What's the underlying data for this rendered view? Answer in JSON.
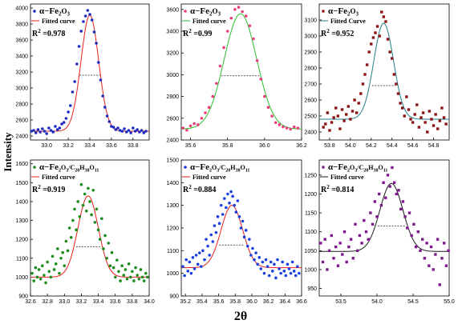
{
  "figure": {
    "ylabel": "Intensity",
    "xlabel": "2θ",
    "fit_label": "Fitted curve",
    "fit_label_alt": "Fitted Curve"
  },
  "chart_data": [
    {
      "type": "scatter",
      "legend_series": "α−Fe2O3",
      "fit_name": "Fitted curve",
      "r2": "R2 =0.978",
      "xlim": [
        32.85,
        33.95
      ],
      "ylim": [
        2350,
        4050
      ],
      "xticks": [
        "33.0",
        "33.2",
        "33.4",
        "33.6",
        "33.8"
      ],
      "xtick_values": [
        33.0,
        33.2,
        33.4,
        33.6,
        33.8
      ],
      "yticks": [
        "2400",
        "2600",
        "2800",
        "3000",
        "3200",
        "3400",
        "3600",
        "3800",
        "4000"
      ],
      "ytick_values": [
        2400,
        2600,
        2800,
        3000,
        3200,
        3400,
        3600,
        3800,
        4000
      ],
      "fit": {
        "center": 33.4,
        "sigma": 0.082,
        "amplitude": 1450,
        "baseline": 2460
      },
      "fwhm_level": 3160,
      "marker": "circle",
      "point_color": "#1d2bbf",
      "fit_color": "#e3201b",
      "x": [
        32.86,
        32.88,
        32.9,
        32.92,
        32.94,
        32.96,
        32.98,
        33.0,
        33.02,
        33.04,
        33.06,
        33.08,
        33.1,
        33.12,
        33.14,
        33.16,
        33.18,
        33.2,
        33.22,
        33.24,
        33.26,
        33.28,
        33.3,
        33.32,
        33.34,
        33.36,
        33.38,
        33.4,
        33.42,
        33.44,
        33.46,
        33.48,
        33.5,
        33.52,
        33.54,
        33.56,
        33.58,
        33.6,
        33.62,
        33.64,
        33.66,
        33.68,
        33.7,
        33.72,
        33.74,
        33.76,
        33.78,
        33.8,
        33.82,
        33.84,
        33.86,
        33.88,
        33.9,
        33.92
      ],
      "y": [
        2460,
        2470,
        2440,
        2480,
        2450,
        2490,
        2460,
        2430,
        2500,
        2470,
        2450,
        2520,
        2480,
        2500,
        2550,
        2570,
        2620,
        2700,
        2780,
        2950,
        3080,
        3300,
        3520,
        3710,
        3830,
        3900,
        3970,
        3920,
        3850,
        3700,
        3560,
        3320,
        3100,
        2900,
        2760,
        2650,
        2580,
        2520,
        2510,
        2480,
        2500,
        2470,
        2460,
        2490,
        2450,
        2470,
        2440,
        2500,
        2460,
        2480,
        2450,
        2470,
        2440,
        2460
      ]
    },
    {
      "type": "scatter",
      "legend_series": "α−Fe2O3",
      "fit_name": "Fitted curve",
      "r2": "R2 =0.99",
      "xlim": [
        35.55,
        36.2
      ],
      "ylim": [
        2400,
        3650
      ],
      "xticks": [
        "35.6",
        "35.8",
        "36.0",
        "36.2"
      ],
      "xtick_values": [
        35.6,
        35.8,
        36.0,
        36.2
      ],
      "yticks": [
        "2400",
        "2600",
        "2800",
        "3000",
        "3200",
        "3400",
        "3600"
      ],
      "ytick_values": [
        2400,
        2600,
        2800,
        3000,
        3200,
        3400,
        3600
      ],
      "fit": {
        "center": 35.87,
        "sigma": 0.088,
        "amplitude": 1060,
        "baseline": 2500
      },
      "fwhm_level": 2990,
      "marker": "circle",
      "point_color": "#e8407a",
      "fit_color": "#2bc02b",
      "x": [
        35.56,
        35.58,
        35.6,
        35.62,
        35.64,
        35.66,
        35.68,
        35.7,
        35.72,
        35.74,
        35.76,
        35.78,
        35.8,
        35.82,
        35.84,
        35.86,
        35.88,
        35.9,
        35.92,
        35.94,
        35.96,
        35.98,
        36.0,
        36.02,
        36.04,
        36.06,
        36.08,
        36.1,
        36.12,
        36.14,
        36.16,
        36.18
      ],
      "y": [
        2510,
        2490,
        2530,
        2550,
        2540,
        2600,
        2650,
        2700,
        2800,
        2920,
        3080,
        3250,
        3400,
        3520,
        3600,
        3620,
        3580,
        3540,
        3450,
        3330,
        3130,
        2960,
        2800,
        2700,
        2620,
        2560,
        2540,
        2520,
        2510,
        2500,
        2520,
        2510
      ]
    },
    {
      "type": "scatter",
      "legend_series": "α−Fe2O3",
      "fit_name": "Fitted Curve",
      "r2": "R2 =0.952",
      "xlim": [
        53.7,
        54.95
      ],
      "ylim": [
        2350,
        3200
      ],
      "xticks": [
        "53.8",
        "54.0",
        "54.2",
        "54.4",
        "54.6",
        "54.8"
      ],
      "xtick_values": [
        53.8,
        54.0,
        54.2,
        54.4,
        54.6,
        54.8
      ],
      "yticks": [
        "2400",
        "2500",
        "2600",
        "2700",
        "2800",
        "2900",
        "3000",
        "3100"
      ],
      "ytick_values": [
        2400,
        2500,
        2600,
        2700,
        2800,
        2900,
        3000,
        3100
      ],
      "fit": {
        "center": 54.32,
        "sigma": 0.095,
        "amplitude": 600,
        "baseline": 2480
      },
      "fwhm_level": 2690,
      "marker": "square",
      "point_color": "#8b1414",
      "fit_color": "#1f7f86",
      "x": [
        53.74,
        53.76,
        53.78,
        53.8,
        53.82,
        53.84,
        53.86,
        53.88,
        53.9,
        53.92,
        53.94,
        53.96,
        53.98,
        54.0,
        54.02,
        54.04,
        54.06,
        54.08,
        54.1,
        54.12,
        54.14,
        54.16,
        54.18,
        54.2,
        54.22,
        54.24,
        54.26,
        54.28,
        54.3,
        54.32,
        54.34,
        54.36,
        54.38,
        54.4,
        54.42,
        54.44,
        54.46,
        54.48,
        54.5,
        54.52,
        54.54,
        54.56,
        54.58,
        54.6,
        54.62,
        54.64,
        54.66,
        54.68,
        54.7,
        54.72,
        54.74,
        54.76,
        54.78,
        54.8,
        54.82,
        54.84,
        54.86,
        54.88,
        54.9,
        54.92
      ],
      "y": [
        2430,
        2450,
        2520,
        2410,
        2460,
        2490,
        2550,
        2500,
        2420,
        2540,
        2470,
        2510,
        2560,
        2480,
        2530,
        2600,
        2520,
        2580,
        2640,
        2700,
        2760,
        2820,
        2900,
        2950,
        2990,
        3020,
        3060,
        3000,
        3150,
        3120,
        3090,
        2980,
        2900,
        2860,
        2760,
        2700,
        2640,
        2580,
        2550,
        2500,
        2620,
        2540,
        2480,
        2460,
        2510,
        2570,
        2430,
        2490,
        2520,
        2460,
        2400,
        2530,
        2480,
        2440,
        2510,
        2420,
        2470,
        2550,
        2490,
        2450
      ]
    },
    {
      "type": "scatter",
      "legend_series": "α−Fe2O3/C20H38O11",
      "fit_name": "Fitted curve",
      "r2": "R2 =0.919",
      "xlim": [
        32.6,
        34.0
      ],
      "ylim": [
        900,
        1620
      ],
      "xticks": [
        "32.6",
        "32.8",
        "33.0",
        "33.2",
        "33.4",
        "33.6",
        "33.8",
        "34.0"
      ],
      "xtick_values": [
        32.6,
        32.8,
        33.0,
        33.2,
        33.4,
        33.6,
        33.8,
        34.0
      ],
      "yticks": [
        "900",
        "1000",
        "1100",
        "1200",
        "1300",
        "1400",
        "1500",
        "1600"
      ],
      "ytick_values": [
        900,
        1000,
        1100,
        1200,
        1300,
        1400,
        1500,
        1600
      ],
      "fit": {
        "center": 33.28,
        "sigma": 0.12,
        "amplitude": 430,
        "baseline": 1000
      },
      "fwhm_level": 1160,
      "marker": "circle",
      "point_color": "#1c8c1c",
      "fit_color": "#e3201b",
      "x": [
        32.62,
        32.64,
        32.66,
        32.68,
        32.7,
        32.72,
        32.74,
        32.76,
        32.78,
        32.8,
        32.82,
        32.84,
        32.86,
        32.88,
        32.9,
        32.92,
        32.94,
        32.96,
        32.98,
        33.0,
        33.02,
        33.04,
        33.06,
        33.08,
        33.1,
        33.12,
        33.14,
        33.16,
        33.18,
        33.2,
        33.22,
        33.24,
        33.26,
        33.28,
        33.3,
        33.32,
        33.34,
        33.36,
        33.38,
        33.4,
        33.42,
        33.44,
        33.46,
        33.48,
        33.5,
        33.52,
        33.54,
        33.56,
        33.58,
        33.6,
        33.62,
        33.64,
        33.66,
        33.68,
        33.7,
        33.72,
        33.74,
        33.76,
        33.78,
        33.8,
        33.82,
        33.84,
        33.86,
        33.88,
        33.9,
        33.92,
        33.94,
        33.96,
        33.98
      ],
      "y": [
        1020,
        980,
        1050,
        1000,
        1040,
        990,
        1060,
        1010,
        970,
        1080,
        1030,
        1000,
        1110,
        1040,
        1070,
        1150,
        1020,
        1100,
        1130,
        1060,
        1190,
        1140,
        1260,
        1210,
        1300,
        1360,
        1250,
        1400,
        1320,
        1490,
        1380,
        1440,
        1350,
        1470,
        1400,
        1330,
        1460,
        1290,
        1360,
        1250,
        1200,
        1310,
        1150,
        1220,
        1100,
        1180,
        1060,
        1130,
        1050,
        1000,
        1090,
        1030,
        980,
        1060,
        1010,
        1040,
        990,
        1070,
        1000,
        1030,
        980,
        1050,
        1010,
        990,
        1040,
        1000,
        980,
        1020,
        1000
      ]
    },
    {
      "type": "scatter",
      "legend_series": "α−Fe2O3/C20H38O11",
      "fit_name": "Fitted curve",
      "r2": "R2 =0.884",
      "xlim": [
        35.15,
        36.6
      ],
      "ylim": [
        900,
        1500
      ],
      "xticks": [
        "35.2",
        "35.4",
        "35.6",
        "35.8",
        "36.0",
        "36.2",
        "36.4",
        "36.6"
      ],
      "xtick_values": [
        35.2,
        35.4,
        35.6,
        35.8,
        36.0,
        36.2,
        36.4,
        36.6
      ],
      "yticks": [
        "900",
        "1000",
        "1100",
        "1200",
        "1300",
        "1400",
        "1500"
      ],
      "ytick_values": [
        900,
        1000,
        1100,
        1200,
        1300,
        1400,
        1500
      ],
      "fit": {
        "center": 35.76,
        "sigma": 0.13,
        "amplitude": 275,
        "baseline": 1025
      },
      "fwhm_level": 1125,
      "marker": "circle",
      "point_color": "#1a3fe0",
      "fit_color": "#e3201b",
      "x": [
        35.17,
        35.19,
        35.21,
        35.23,
        35.25,
        35.27,
        35.29,
        35.31,
        35.33,
        35.35,
        35.37,
        35.39,
        35.41,
        35.43,
        35.45,
        35.47,
        35.49,
        35.51,
        35.53,
        35.55,
        35.57,
        35.59,
        35.61,
        35.63,
        35.65,
        35.67,
        35.69,
        35.71,
        35.73,
        35.75,
        35.77,
        35.79,
        35.81,
        35.83,
        35.85,
        35.87,
        35.89,
        35.91,
        35.93,
        35.95,
        35.97,
        35.99,
        36.01,
        36.03,
        36.05,
        36.07,
        36.09,
        36.11,
        36.13,
        36.15,
        36.17,
        36.19,
        36.21,
        36.23,
        36.25,
        36.27,
        36.29,
        36.31,
        36.33,
        36.35,
        36.37,
        36.39,
        36.41,
        36.43,
        36.45,
        36.47,
        36.49,
        36.51,
        36.53,
        36.55,
        36.57
      ],
      "y": [
        1030,
        990,
        1060,
        1010,
        1050,
        1000,
        1070,
        1020,
        1080,
        1040,
        1090,
        1030,
        1100,
        1060,
        1150,
        1120,
        1080,
        1170,
        1140,
        1210,
        1180,
        1250,
        1220,
        1300,
        1260,
        1330,
        1290,
        1350,
        1310,
        1360,
        1340,
        1300,
        1270,
        1320,
        1250,
        1200,
        1230,
        1160,
        1190,
        1120,
        1150,
        1080,
        1110,
        1060,
        1090,
        1040,
        1070,
        1020,
        1050,
        1000,
        1060,
        1030,
        990,
        1050,
        1010,
        1040,
        980,
        1060,
        1020,
        1000,
        1050,
        1010,
        990,
        1040,
        1020,
        1000,
        1050,
        1010,
        990,
        1030,
        1000
      ]
    },
    {
      "type": "scatter",
      "legend_series": "α−Fe2O3/C20H38O11",
      "fit_name": "Fitted curve",
      "r2": "R2 =0.814",
      "xlim": [
        53.2,
        55.0
      ],
      "ylim": [
        930,
        1290
      ],
      "xticks": [
        "53.5",
        "54.0",
        "54.5",
        "55.0"
      ],
      "xtick_values": [
        53.5,
        54.0,
        54.5,
        55.0
      ],
      "yticks": [
        "950",
        "1000",
        "1050",
        "1100",
        "1150",
        "1200",
        "1250"
      ],
      "ytick_values": [
        950,
        1000,
        1050,
        1100,
        1150,
        1200,
        1250
      ],
      "fit": {
        "center": 54.2,
        "sigma": 0.16,
        "amplitude": 180,
        "baseline": 1048
      },
      "fwhm_level": 1115,
      "marker": "square",
      "point_color": "#7d1a8c",
      "fit_color": "#1a1a1a",
      "x": [
        53.22,
        53.25,
        53.28,
        53.31,
        53.34,
        53.37,
        53.4,
        53.43,
        53.46,
        53.49,
        53.52,
        53.55,
        53.58,
        53.61,
        53.64,
        53.67,
        53.7,
        53.73,
        53.76,
        53.79,
        53.82,
        53.85,
        53.88,
        53.91,
        53.94,
        53.97,
        54.0,
        54.03,
        54.06,
        54.09,
        54.12,
        54.15,
        54.18,
        54.21,
        54.24,
        54.27,
        54.3,
        54.33,
        54.36,
        54.39,
        54.42,
        54.45,
        54.48,
        54.51,
        54.54,
        54.57,
        54.6,
        54.63,
        54.66,
        54.69,
        54.72,
        54.75,
        54.78,
        54.81,
        54.84,
        54.87,
        54.9,
        54.93,
        54.96,
        54.99
      ],
      "y": [
        1070,
        1020,
        1080,
        1000,
        1050,
        1090,
        1030,
        1060,
        1010,
        1070,
        1040,
        1100,
        1020,
        1060,
        1080,
        1030,
        1120,
        1050,
        1090,
        1070,
        1130,
        1100,
        1080,
        1150,
        1120,
        1180,
        1140,
        1200,
        1170,
        1230,
        1190,
        1250,
        1220,
        1270,
        1230,
        1200,
        1210,
        1160,
        1180,
        1140,
        1110,
        1150,
        1090,
        1120,
        1060,
        1100,
        1050,
        1080,
        1030,
        1070,
        1010,
        1060,
        1000,
        1040,
        1080,
        960,
        1030,
        1070,
        1010,
        1050
      ]
    }
  ]
}
